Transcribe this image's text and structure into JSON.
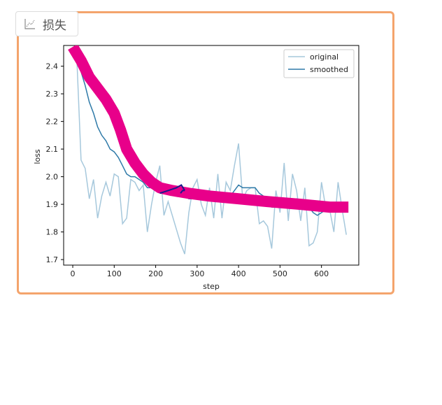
{
  "tab": {
    "label": "损失",
    "icon": "chart-line-icon"
  },
  "colors": {
    "border": "#f4a46c",
    "original": "#a6c8dc",
    "smoothed": "#2f7aa8",
    "annotation": "#e8008a",
    "overlay": "#1a1a8c"
  },
  "chart_data": {
    "type": "line",
    "title": "",
    "xlabel": "step",
    "ylabel": "loss",
    "xlim": [
      -22,
      690
    ],
    "ylim": [
      1.68,
      2.475
    ],
    "xticks": [
      0,
      100,
      200,
      300,
      400,
      500,
      600
    ],
    "yticks": [
      1.7,
      1.8,
      1.9,
      2.0,
      2.1,
      2.2,
      2.3,
      2.4
    ],
    "legend": {
      "position": "top-right",
      "entries": [
        "original",
        "smoothed"
      ]
    },
    "series": [
      {
        "name": "original",
        "x": [
          10,
          20,
          30,
          40,
          50,
          60,
          70,
          80,
          90,
          100,
          110,
          120,
          130,
          140,
          150,
          160,
          170,
          180,
          190,
          200,
          210,
          220,
          230,
          240,
          250,
          260,
          270,
          280,
          290,
          300,
          310,
          320,
          330,
          340,
          350,
          360,
          370,
          380,
          390,
          400,
          410,
          420,
          430,
          440,
          450,
          460,
          470,
          480,
          490,
          500,
          510,
          520,
          530,
          540,
          550,
          560,
          570,
          580,
          590,
          600,
          610,
          620,
          630,
          640,
          650,
          660
        ],
        "values": [
          2.42,
          2.06,
          2.03,
          1.92,
          1.99,
          1.85,
          1.93,
          1.98,
          1.93,
          2.01,
          2.0,
          1.83,
          1.85,
          1.99,
          1.98,
          1.95,
          1.97,
          1.8,
          1.9,
          1.98,
          2.04,
          1.86,
          1.91,
          1.86,
          1.81,
          1.76,
          1.72,
          1.87,
          1.96,
          1.99,
          1.9,
          1.86,
          1.96,
          1.85,
          2.01,
          1.85,
          1.98,
          1.95,
          2.04,
          2.12,
          1.92,
          1.95,
          1.96,
          1.96,
          1.83,
          1.84,
          1.82,
          1.74,
          1.95,
          1.87,
          2.05,
          1.84,
          2.01,
          1.95,
          1.84,
          1.96,
          1.75,
          1.76,
          1.8,
          1.98,
          1.89,
          1.88,
          1.8,
          1.98,
          1.88,
          1.79
        ]
      },
      {
        "name": "smoothed",
        "x": [
          10,
          20,
          30,
          40,
          50,
          60,
          70,
          80,
          90,
          100,
          110,
          120,
          130,
          140,
          150,
          160,
          170,
          180,
          190,
          200,
          210,
          220,
          230,
          240,
          250,
          260,
          270,
          280,
          290,
          300,
          310,
          320,
          330,
          340,
          350,
          360,
          370,
          380,
          390,
          400,
          410,
          420,
          430,
          440,
          450,
          460,
          470,
          480,
          490,
          500,
          510,
          520,
          530,
          540,
          550,
          560,
          570,
          580,
          590,
          600,
          610,
          620,
          630,
          640,
          650,
          660
        ],
        "values": [
          2.43,
          2.38,
          2.33,
          2.27,
          2.23,
          2.18,
          2.15,
          2.13,
          2.1,
          2.09,
          2.07,
          2.04,
          2.01,
          2.0,
          2.0,
          1.99,
          1.98,
          1.96,
          1.96,
          1.96,
          1.97,
          1.95,
          1.95,
          1.94,
          1.95,
          1.94,
          1.93,
          1.92,
          1.92,
          1.93,
          1.93,
          1.92,
          1.93,
          1.92,
          1.93,
          1.92,
          1.93,
          1.93,
          1.95,
          1.97,
          1.96,
          1.96,
          1.96,
          1.96,
          1.94,
          1.93,
          1.91,
          1.89,
          1.89,
          1.89,
          1.91,
          1.9,
          1.91,
          1.92,
          1.91,
          1.91,
          1.89,
          1.87,
          1.86,
          1.87,
          1.88,
          1.89,
          1.89,
          1.89,
          1.89,
          1.88
        ]
      }
    ],
    "annotation_stroke": {
      "x": [
        0,
        20,
        40,
        60,
        80,
        100,
        115,
        130,
        150,
        170,
        190,
        210,
        240,
        280,
        330,
        400,
        470,
        550,
        620,
        665
      ],
      "values": [
        2.47,
        2.42,
        2.36,
        2.32,
        2.28,
        2.23,
        2.17,
        2.1,
        2.05,
        2.01,
        1.98,
        1.96,
        1.95,
        1.94,
        1.93,
        1.92,
        1.91,
        1.9,
        1.89,
        1.89
      ]
    },
    "overlay_segments": [
      {
        "x": [
          210,
          230,
          250,
          262,
          270
        ],
        "values": [
          1.94,
          1.95,
          1.96,
          1.97,
          1.95
        ]
      },
      {
        "x": [
          260,
          265,
          270
        ],
        "values": [
          1.94,
          1.95,
          1.95
        ]
      }
    ]
  }
}
